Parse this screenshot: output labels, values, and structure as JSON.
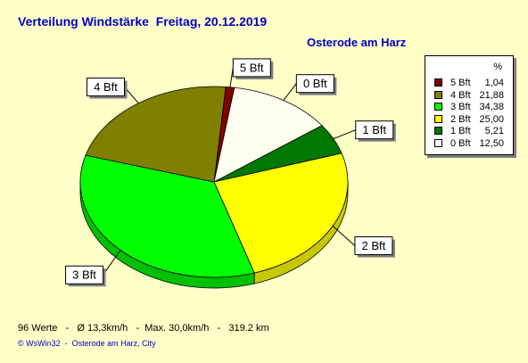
{
  "title": "Verteilung Windstärke  Freitag, 20.12.2019",
  "location": "Osterode am Harz",
  "legend_header": "%",
  "stats": "96 Werte   -   Ø 13,3km/h   -  Max. 30,0km/h   -   319.2 km",
  "footer": "© WsWin32  -  Osterode am Harz, City",
  "chart_data": {
    "type": "pie",
    "title": "Verteilung Windstärke  Freitag, 20.12.2019",
    "slices": [
      {
        "label": "5 Bft",
        "legend_label": "5 Bft",
        "value": 1.04,
        "value_text": "1,04",
        "color": "#800000",
        "side_color": "#5A0000"
      },
      {
        "label": "0 Bft",
        "legend_label": "0 Bft",
        "value": 12.5,
        "value_text": "12,50",
        "color": "#FFFFF2",
        "side_color": "#CFCFC2"
      },
      {
        "label": "1 Bft",
        "legend_label": "1 Bft",
        "value": 5.21,
        "value_text": "5,21",
        "color": "#007800",
        "side_color": "#005000"
      },
      {
        "label": "2 Bft",
        "legend_label": "2 Bft",
        "value": 25.0,
        "value_text": "25,00",
        "color": "#FFFF00",
        "side_color": "#C8C800"
      },
      {
        "label": "3 Bft",
        "legend_label": "3 Bft",
        "value": 34.38,
        "value_text": "34,38",
        "color": "#00FF00",
        "side_color": "#00C000"
      },
      {
        "label": "4 Bft",
        "legend_label": "4 Bft",
        "value": 21.88,
        "value_text": "21,88",
        "color": "#808000",
        "side_color": "#5A5A00"
      }
    ],
    "legend_order": [
      "5 Bft",
      "4 Bft",
      "3 Bft",
      "2 Bft",
      "1 Bft",
      "0 Bft"
    ],
    "legend_placement": "right"
  }
}
